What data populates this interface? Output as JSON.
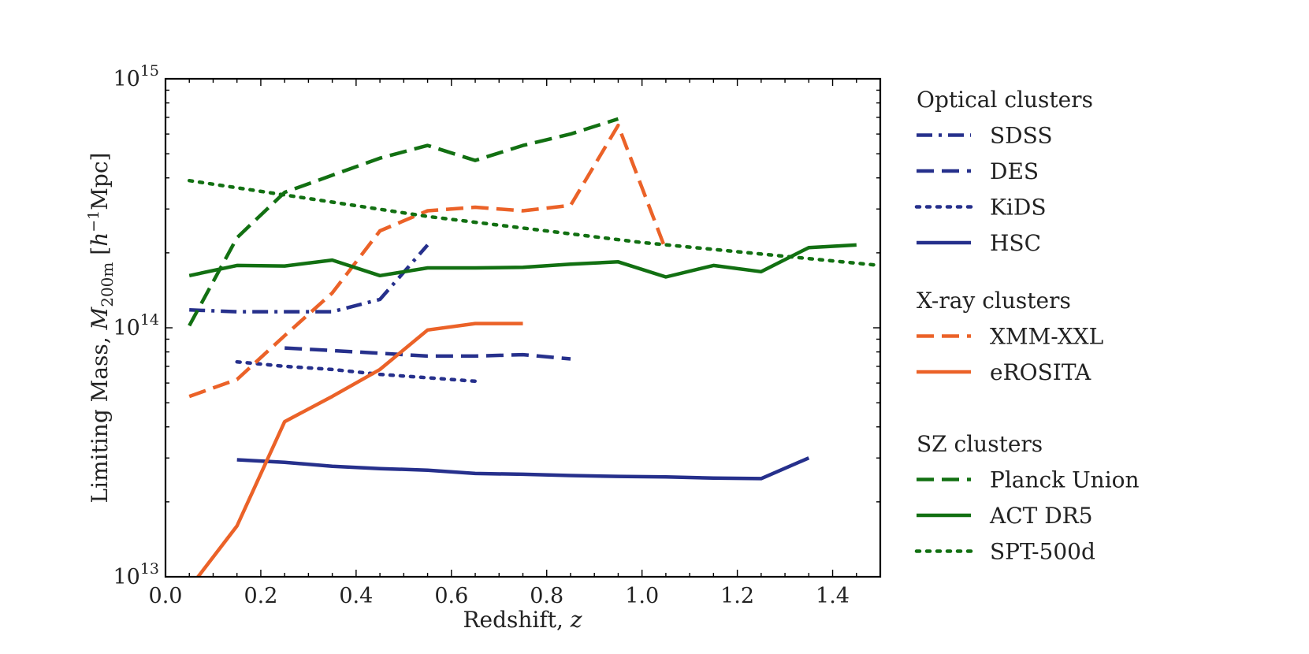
{
  "chart_data": {
    "type": "line",
    "xlabel": "Redshift, ",
    "xlabel_italic": "z",
    "ylabel": {
      "prefix": "Limiting Mass, ",
      "symbol": "M",
      "subscript": "200m",
      "unit_open": " [",
      "unit_h": "h",
      "unit_exp": "−1",
      "unit_close": "Mpc]"
    },
    "xlim": [
      0.0,
      1.5
    ],
    "ylim": [
      10000000000000.0,
      1000000000000000.0
    ],
    "yscale": "log",
    "xticks": [
      {
        "value": 0.0,
        "label": "0.0"
      },
      {
        "value": 0.2,
        "label": "0.2"
      },
      {
        "value": 0.4,
        "label": "0.4"
      },
      {
        "value": 0.6,
        "label": "0.6"
      },
      {
        "value": 0.8,
        "label": "0.8"
      },
      {
        "value": 1.0,
        "label": "1.0"
      },
      {
        "value": 1.2,
        "label": "1.2"
      },
      {
        "value": 1.4,
        "label": "1.4"
      }
    ],
    "yticks": [
      {
        "value": 10000000000000.0,
        "base": "10",
        "exp": "13"
      },
      {
        "value": 100000000000000.0,
        "base": "10",
        "exp": "14"
      },
      {
        "value": 1000000000000000.0,
        "base": "10",
        "exp": "15"
      }
    ],
    "grid": false,
    "legend_position": "right-outside",
    "legend_groups": [
      {
        "title": "Optical clusters",
        "series": [
          "SDSS",
          "DES",
          "KiDS",
          "HSC"
        ]
      },
      {
        "title": "X-ray clusters",
        "series": [
          "XMM-XXL",
          "eROSITA"
        ]
      },
      {
        "title": "SZ clusters",
        "series": [
          "Planck Union",
          "ACT DR5",
          "SPT-500d"
        ]
      }
    ],
    "series": [
      {
        "name": "SDSS",
        "color": "#26308c",
        "style": "dashdot",
        "x": [
          0.05,
          0.15,
          0.25,
          0.35,
          0.45,
          0.55
        ],
        "y": [
          118000000000000.0,
          116000000000000.0,
          116000000000000.0,
          116000000000000.0,
          130000000000000.0,
          215000000000000.0
        ]
      },
      {
        "name": "DES",
        "color": "#26308c",
        "style": "dashed",
        "x": [
          0.25,
          0.35,
          0.45,
          0.55,
          0.65,
          0.75,
          0.85
        ],
        "y": [
          83000000000000.0,
          81000000000000.0,
          79000000000000.0,
          77000000000000.0,
          77000000000000.0,
          78000000000000.0,
          75000000000000.0
        ]
      },
      {
        "name": "KiDS",
        "color": "#26308c",
        "style": "dotted",
        "x": [
          0.15,
          0.25,
          0.35,
          0.45,
          0.55,
          0.65
        ],
        "y": [
          73000000000000.0,
          70000000000000.0,
          68000000000000.0,
          65000000000000.0,
          63000000000000.0,
          61000000000000.0
        ]
      },
      {
        "name": "HSC",
        "color": "#26308c",
        "style": "solid",
        "x": [
          0.15,
          0.25,
          0.35,
          0.45,
          0.55,
          0.65,
          0.75,
          0.85,
          0.95,
          1.05,
          1.15,
          1.25,
          1.35
        ],
        "y": [
          29500000000000.0,
          28800000000000.0,
          27800000000000.0,
          27200000000000.0,
          26800000000000.0,
          26000000000000.0,
          25800000000000.0,
          25500000000000.0,
          25300000000000.0,
          25200000000000.0,
          24900000000000.0,
          24800000000000.0,
          30000000000000.0
        ]
      },
      {
        "name": "XMM-XXL",
        "color": "#eb6228",
        "style": "dashed",
        "x": [
          0.05,
          0.15,
          0.25,
          0.35,
          0.45,
          0.55,
          0.65,
          0.75,
          0.85,
          0.95,
          1.05
        ],
        "y": [
          53000000000000.0,
          62000000000000.0,
          93000000000000.0,
          138000000000000.0,
          245000000000000.0,
          295000000000000.0,
          305000000000000.0,
          295000000000000.0,
          310000000000000.0,
          650000000000000.0,
          205000000000000.0
        ]
      },
      {
        "name": "eROSITA",
        "color": "#eb6228",
        "style": "solid",
        "x": [
          0.05,
          0.15,
          0.25,
          0.35,
          0.45,
          0.55,
          0.65,
          0.75
        ],
        "y": [
          9000000000000.0,
          16000000000000.0,
          42000000000000.0,
          53000000000000.0,
          68000000000000.0,
          98000000000000.0,
          104000000000000.0,
          104000000000000.0
        ]
      },
      {
        "name": "Planck Union",
        "color": "#127012",
        "style": "dashed",
        "x": [
          0.05,
          0.15,
          0.25,
          0.35,
          0.45,
          0.55,
          0.65,
          0.75,
          0.85,
          0.95
        ],
        "y": [
          102000000000000.0,
          230000000000000.0,
          350000000000000.0,
          410000000000000.0,
          480000000000000.0,
          540000000000000.0,
          470000000000000.0,
          540000000000000.0,
          600000000000000.0,
          690000000000000.0
        ]
      },
      {
        "name": "ACT DR5",
        "color": "#127012",
        "style": "solid",
        "x": [
          0.05,
          0.15,
          0.25,
          0.35,
          0.45,
          0.55,
          0.65,
          0.75,
          0.85,
          0.95,
          1.05,
          1.15,
          1.25,
          1.35,
          1.45
        ],
        "y": [
          162000000000000.0,
          178000000000000.0,
          177000000000000.0,
          187000000000000.0,
          162000000000000.0,
          174000000000000.0,
          174000000000000.0,
          175000000000000.0,
          180000000000000.0,
          184000000000000.0,
          160000000000000.0,
          178000000000000.0,
          168000000000000.0,
          210000000000000.0,
          215000000000000.0
        ]
      },
      {
        "name": "SPT-500d",
        "color": "#127012",
        "style": "dotted",
        "x": [
          0.05,
          0.55,
          1.0,
          1.5
        ],
        "y": [
          390000000000000.0,
          280000000000000.0,
          220000000000000.0,
          178000000000000.0
        ]
      }
    ]
  }
}
